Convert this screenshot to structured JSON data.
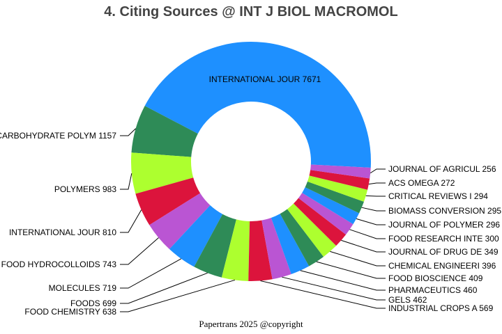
{
  "chart_data": {
    "type": "pie",
    "donut": true,
    "title": "4. Citing Sources @ INT J BIOL MACROMOL",
    "labels": [
      "INTERNATIONAL JOUR",
      "CARBOHYDRATE POLYM",
      "POLYMERS",
      "INTERNATIONAL JOUR",
      "FOOD HYDROCOLLOIDS",
      "MOLECULES",
      "FOODS",
      "FOOD CHEMISTRY",
      "INDUSTRIAL CROPS A",
      "GELS",
      "PHARMACEUTICS",
      "FOOD BIOSCIENCE",
      "CHEMICAL ENGINEERI",
      "JOURNAL OF DRUG DE",
      "FOOD RESEARCH INTE",
      "JOURNAL OF POLYMER",
      "BIOMASS CONVERSION",
      "CRITICAL REVIEWS I",
      "ACS OMEGA",
      "JOURNAL OF AGRICUL"
    ],
    "values": [
      7671,
      1157,
      983,
      810,
      743,
      719,
      699,
      638,
      569,
      462,
      460,
      409,
      396,
      349,
      300,
      296,
      295,
      294,
      272,
      256
    ],
    "colors": [
      "#1E90FF",
      "#2E8B57",
      "#ADFF2F",
      "#DC143C",
      "#BA55D3"
    ]
  },
  "footer": "Papertrans 2025 @copyright"
}
